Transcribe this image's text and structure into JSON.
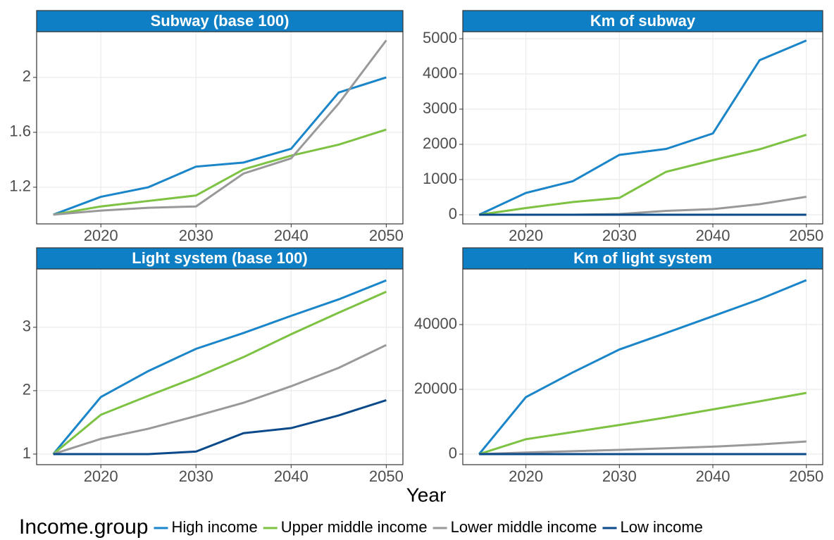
{
  "chart_data": [
    {
      "type": "line",
      "title": "Subway (base 100)",
      "x": [
        2015,
        2020,
        2025,
        2030,
        2035,
        2040,
        2045,
        2050
      ],
      "xlim": [
        2013.25,
        2051.75
      ],
      "xticks": [
        2020,
        2030,
        2040,
        2050
      ],
      "ylim": [
        0.933,
        2.333
      ],
      "yticks": [
        1.2,
        1.6,
        2.0
      ],
      "grid": true,
      "series": [
        {
          "name": "High income",
          "color": "#1a85c8",
          "values": [
            1.0,
            1.13,
            1.2,
            1.35,
            1.38,
            1.48,
            1.89,
            2.0
          ]
        },
        {
          "name": "Upper middle income",
          "color": "#7dc242",
          "values": [
            1.0,
            1.06,
            1.1,
            1.14,
            1.33,
            1.43,
            1.51,
            1.62
          ]
        },
        {
          "name": "Lower middle income",
          "color": "#999999",
          "values": [
            1.0,
            1.03,
            1.05,
            1.06,
            1.3,
            1.41,
            1.81,
            2.27
          ]
        }
      ]
    },
    {
      "type": "line",
      "title": "Km of subway",
      "x": [
        2015,
        2020,
        2025,
        2030,
        2035,
        2040,
        2045,
        2050
      ],
      "xlim": [
        2013.25,
        2051.75
      ],
      "xticks": [
        2020,
        2030,
        2040,
        2050
      ],
      "ylim": [
        -260,
        5200
      ],
      "yticks": [
        0,
        1000,
        2000,
        3000,
        4000,
        5000
      ],
      "grid": true,
      "series": [
        {
          "name": "High income",
          "color": "#1a85c8",
          "values": [
            0,
            620,
            950,
            1700,
            1870,
            2310,
            4390,
            4950
          ]
        },
        {
          "name": "Upper middle income",
          "color": "#7dc242",
          "values": [
            0,
            190,
            360,
            480,
            1220,
            1550,
            1860,
            2270
          ]
        },
        {
          "name": "Lower middle income",
          "color": "#999999",
          "values": [
            0,
            0,
            0,
            20,
            110,
            160,
            300,
            510
          ]
        },
        {
          "name": "Low income",
          "color": "#0b4a8a",
          "values": [
            0,
            0,
            0,
            0,
            0,
            0,
            0,
            0
          ]
        }
      ]
    },
    {
      "type": "line",
      "title": "Light system (base 100)",
      "x": [
        2015,
        2020,
        2025,
        2030,
        2035,
        2040,
        2045,
        2050
      ],
      "xlim": [
        2013.25,
        2051.75
      ],
      "xticks": [
        2020,
        2030,
        2040,
        2050
      ],
      "ylim": [
        0.833,
        3.92
      ],
      "yticks": [
        1,
        2,
        3
      ],
      "grid": true,
      "series": [
        {
          "name": "High income",
          "color": "#1a85c8",
          "values": [
            1,
            1.9,
            2.31,
            2.66,
            2.91,
            3.18,
            3.44,
            3.74
          ]
        },
        {
          "name": "Upper middle income",
          "color": "#7dc242",
          "values": [
            1,
            1.62,
            1.92,
            2.21,
            2.53,
            2.89,
            3.23,
            3.56
          ]
        },
        {
          "name": "Lower middle income",
          "color": "#999999",
          "values": [
            1,
            1.24,
            1.4,
            1.6,
            1.81,
            2.07,
            2.36,
            2.72
          ]
        },
        {
          "name": "Low income",
          "color": "#0b4a8a",
          "values": [
            1,
            1,
            1,
            1.04,
            1.33,
            1.41,
            1.61,
            1.85
          ]
        }
      ]
    },
    {
      "type": "line",
      "title": "Km of light system",
      "x": [
        2015,
        2020,
        2025,
        2030,
        2035,
        2040,
        2045,
        2050
      ],
      "xlim": [
        2013.25,
        2051.75
      ],
      "xticks": [
        2020,
        2030,
        2040,
        2050
      ],
      "ylim": [
        -3261,
        57174
      ],
      "yticks": [
        0,
        20000,
        40000
      ],
      "grid": true,
      "series": [
        {
          "name": "High income",
          "color": "#1a85c8",
          "values": [
            0,
            17600,
            25200,
            32300,
            37400,
            42600,
            47800,
            53700
          ]
        },
        {
          "name": "Upper middle income",
          "color": "#7dc242",
          "values": [
            0,
            4600,
            6800,
            9000,
            11300,
            13800,
            16300,
            18900
          ]
        },
        {
          "name": "Lower middle income",
          "color": "#999999",
          "values": [
            0,
            500,
            900,
            1300,
            1800,
            2300,
            3000,
            3900
          ]
        },
        {
          "name": "Low income",
          "color": "#0b4a8a",
          "values": [
            0,
            0,
            0,
            0,
            0,
            0,
            0,
            0
          ]
        }
      ]
    }
  ],
  "xlabel": "Year",
  "legend_title": "Income.group"
}
